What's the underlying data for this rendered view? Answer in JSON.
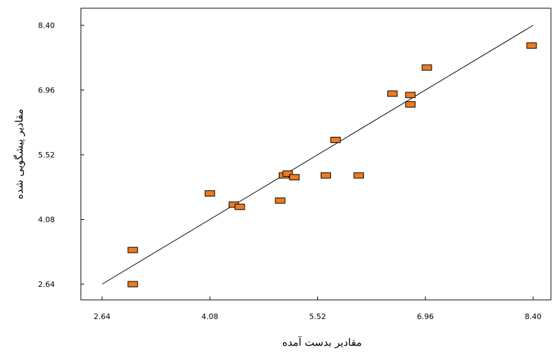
{
  "chart_data": {
    "type": "scatter",
    "title": "",
    "xlabel": "مقادیر بدست آمده",
    "ylabel": "مقادیر پیشگویی شده",
    "xlim": [
      2.64,
      8.4
    ],
    "ylim": [
      2.64,
      8.4
    ],
    "x_ticks": [
      "2.64",
      "4.08",
      "5.52",
      "6.96",
      "8.40"
    ],
    "y_ticks": [
      "2.64",
      "4.08",
      "5.52",
      "6.96",
      "8.40"
    ],
    "grid": false,
    "marker_color": "#ee7a1d",
    "reference_line": {
      "x": [
        2.64,
        8.4
      ],
      "y": [
        2.64,
        8.4
      ]
    },
    "points": [
      {
        "x": 3.05,
        "y": 2.64
      },
      {
        "x": 3.05,
        "y": 3.4
      },
      {
        "x": 4.08,
        "y": 4.66
      },
      {
        "x": 4.4,
        "y": 4.41
      },
      {
        "x": 4.48,
        "y": 4.36
      },
      {
        "x": 5.02,
        "y": 4.5
      },
      {
        "x": 5.07,
        "y": 5.06
      },
      {
        "x": 5.12,
        "y": 5.1
      },
      {
        "x": 5.21,
        "y": 5.02
      },
      {
        "x": 5.63,
        "y": 5.06
      },
      {
        "x": 5.76,
        "y": 5.85
      },
      {
        "x": 6.07,
        "y": 5.06
      },
      {
        "x": 6.52,
        "y": 6.88
      },
      {
        "x": 6.76,
        "y": 6.85
      },
      {
        "x": 6.76,
        "y": 6.64
      },
      {
        "x": 6.98,
        "y": 7.46
      },
      {
        "x": 8.38,
        "y": 7.95
      }
    ]
  }
}
